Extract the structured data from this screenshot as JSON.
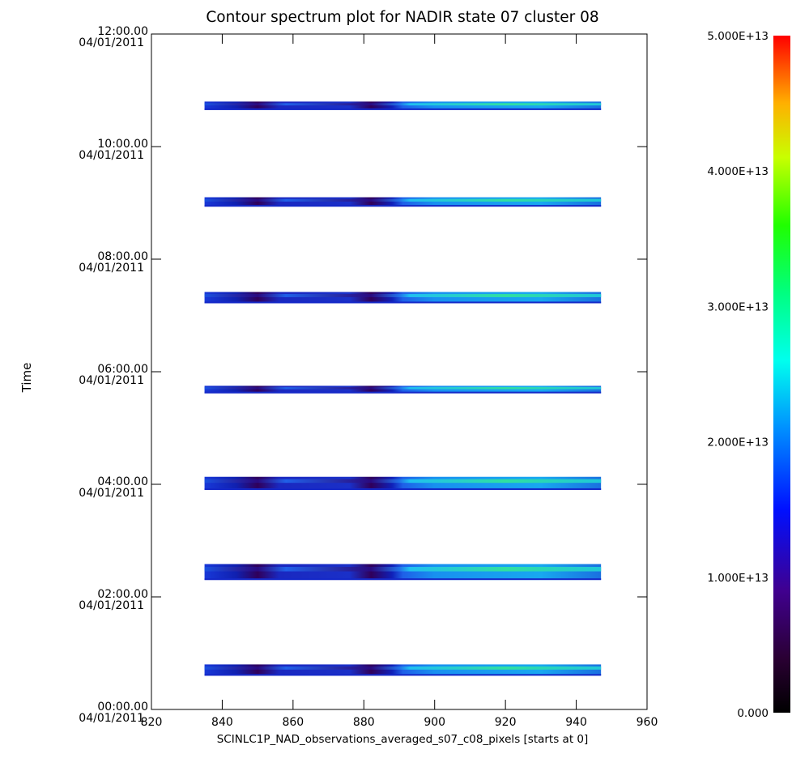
{
  "chart_data": {
    "type": "heatmap",
    "title": "Contour spectrum plot for NADIR state 07 cluster 08",
    "xlabel": "SCINLC1P_NAD_observations_averaged_s07_c08_pixels [starts at 0]",
    "ylabel": "Time",
    "x_range": [
      820,
      960
    ],
    "x_ticks": [
      "820",
      "840",
      "860",
      "880",
      "900",
      "920",
      "940",
      "960"
    ],
    "y_ticks": [
      {
        "time": "00:00.00",
        "date": "04/01/2011"
      },
      {
        "time": "02:00.00",
        "date": "04/01/2011"
      },
      {
        "time": "04:00.00",
        "date": "04/01/2011"
      },
      {
        "time": "06:00.00",
        "date": "04/01/2011"
      },
      {
        "time": "08:00.00",
        "date": "04/01/2011"
      },
      {
        "time": "10:00.00",
        "date": "04/01/2011"
      },
      {
        "time": "12:00.00",
        "date": "04/01/2011"
      }
    ],
    "y_range_hours": [
      0,
      12
    ],
    "pixel_range": [
      835,
      947
    ],
    "observation_bands": [
      {
        "start": "00:36",
        "end": "00:48"
      },
      {
        "start": "02:18",
        "end": "02:35"
      },
      {
        "start": "03:54",
        "end": "04:08"
      },
      {
        "start": "05:37",
        "end": "05:45"
      },
      {
        "start": "07:13",
        "end": "07:25"
      },
      {
        "start": "08:56",
        "end": "09:06"
      },
      {
        "start": "10:39",
        "end": "10:48"
      }
    ],
    "colorbar": {
      "min": 0,
      "max": 50000000000000.0,
      "tick_labels": [
        "0.000",
        "1.000E+13",
        "2.000E+13",
        "3.000E+13",
        "4.000E+13",
        "5.000E+13"
      ],
      "colormap": "rainbow"
    }
  }
}
